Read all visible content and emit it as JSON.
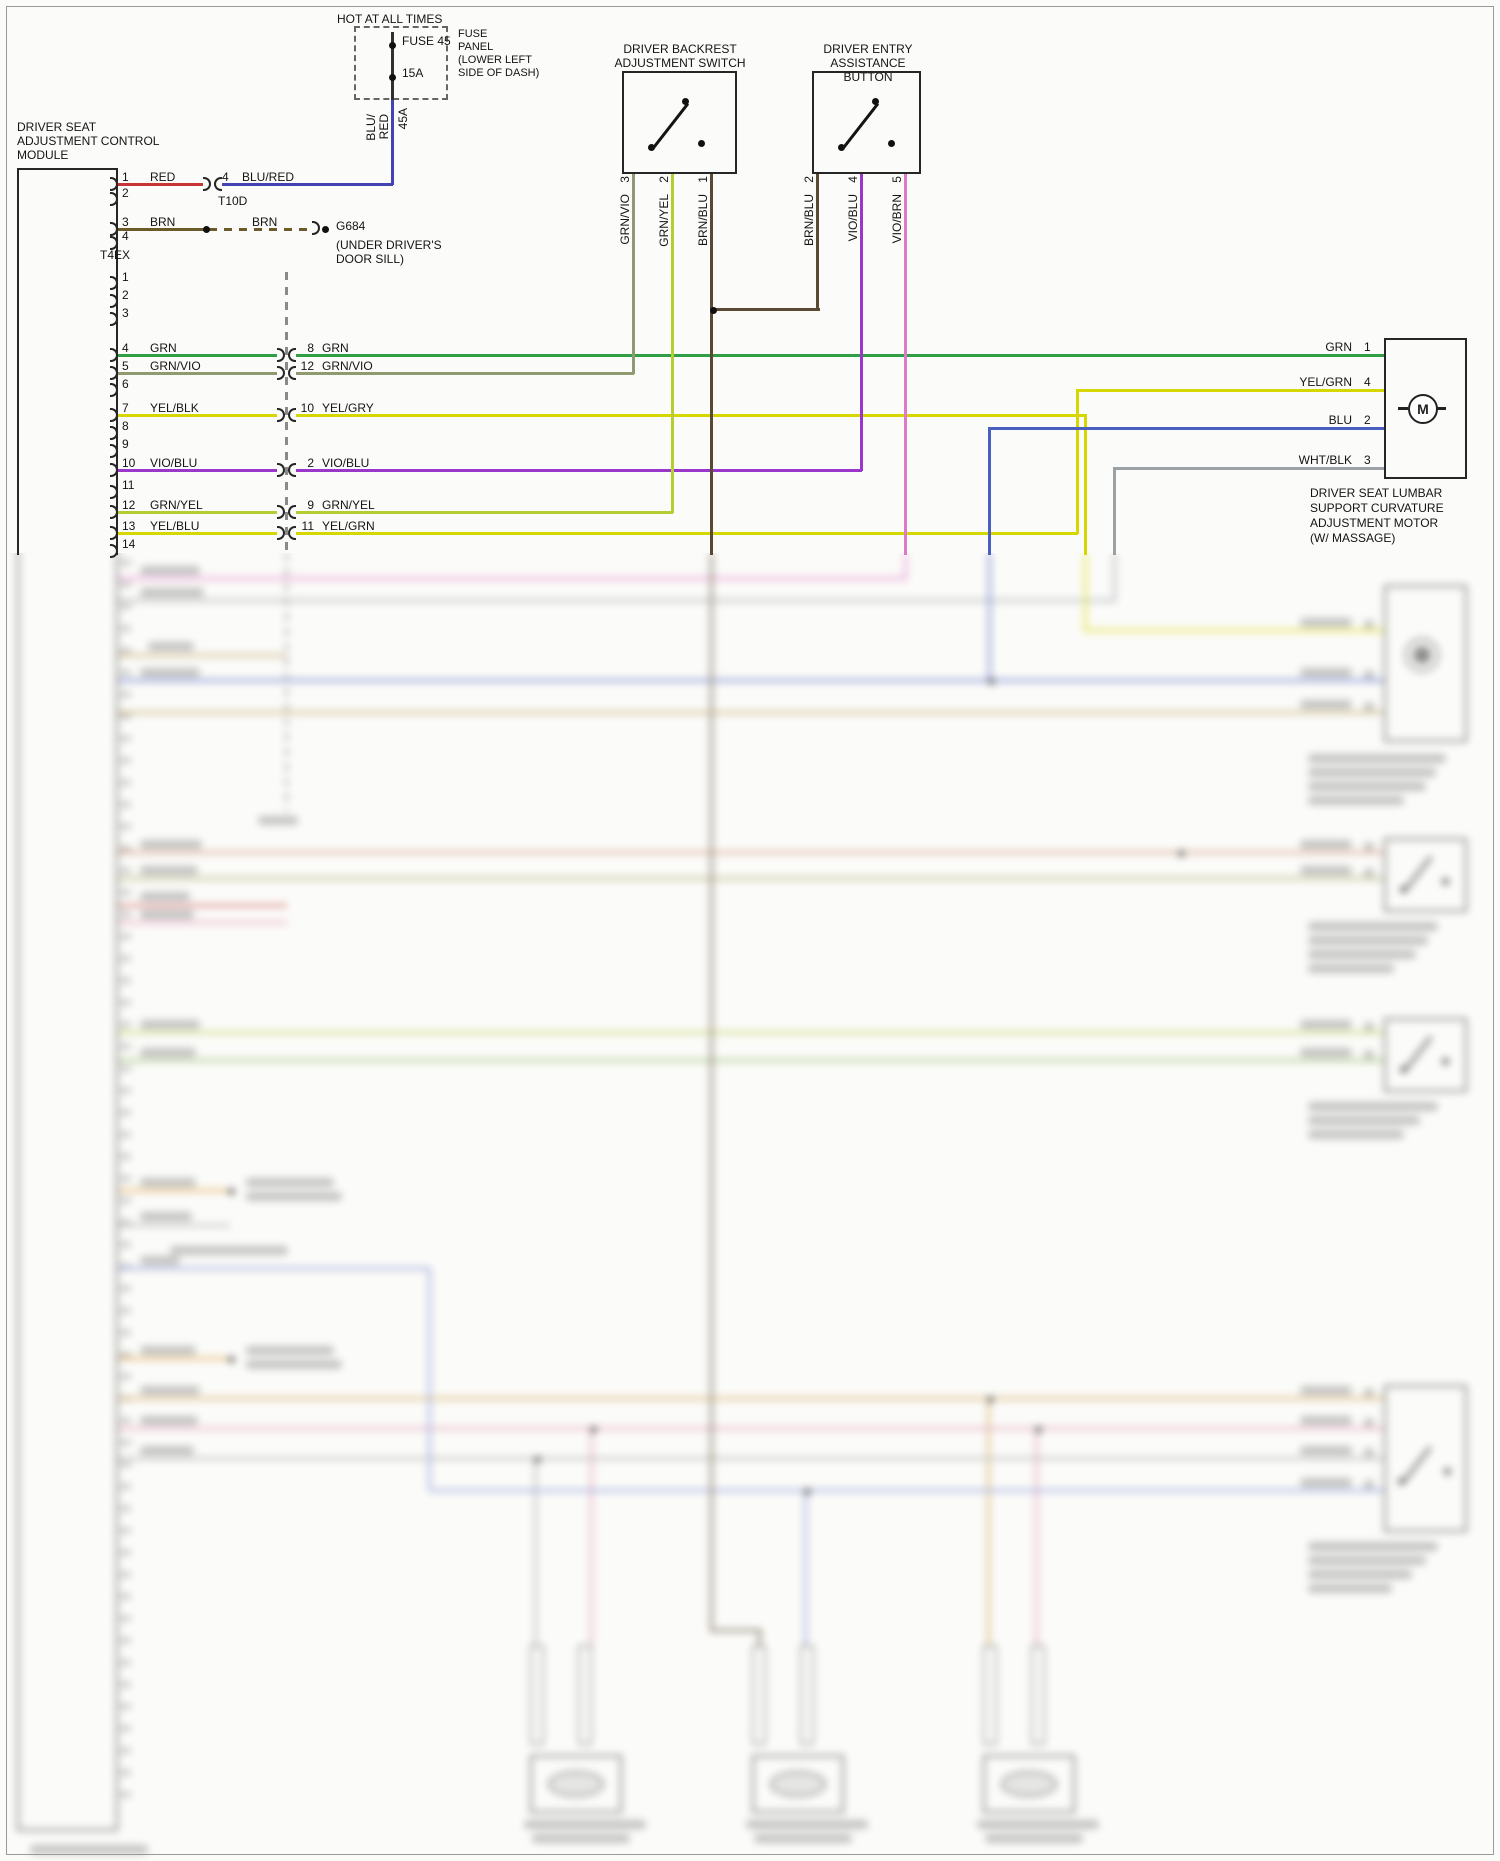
{
  "colors": {
    "red": "#c63636",
    "blu_red": "#4343b2",
    "brn": "#6b5a2a",
    "grn": "#2f9e44",
    "grn_vio": "#8f9a70",
    "yel": "#d6d600",
    "vio_blu": "#9a36c9",
    "grn_yel": "#b5cc33",
    "brn_blu": "#5a4a33",
    "vio_brn": "#de7bc8",
    "blu": "#4a5fc0",
    "wht_blk": "#9aa0a3",
    "tan": "#b59a56",
    "salmon": "#c9876a",
    "olive": "#a0a060",
    "red2": "#c34a4a",
    "pink": "#dd8fae",
    "yelgrn": "#b8c84a",
    "green2": "#86b05a",
    "orange": "#d9972f",
    "gray2": "#a3a3a3",
    "tan2": "#cc9a44",
    "blu2": "#7b8cd0"
  },
  "power": {
    "hot": "HOT AT ALL TIMES",
    "fuse_name": "FUSE 45",
    "fuse_rating": "15A",
    "panel_note": "FUSE\nPANEL\n(LOWER LEFT\nSIDE OF DASH)",
    "wire_color_a": "BLU/",
    "wire_color_b": "RED",
    "wire_gauge": "45A"
  },
  "module": {
    "title": "DRIVER SEAT\nADJUSTMENT CONTROL\nMODULE",
    "connector1": {
      "name": "T4EX",
      "pins": [
        {
          "n": "1",
          "wire": "RED"
        },
        {
          "n": "2",
          "wire": ""
        },
        {
          "n": "3",
          "wire": "BRN"
        },
        {
          "n": "4",
          "wire": ""
        }
      ]
    },
    "inline_connector": {
      "name": "T10D",
      "pin": "4",
      "wire": "BLU/RED"
    },
    "ground": {
      "wire": "BRN",
      "wire2": "BRN",
      "id": "G684",
      "note": "(UNDER DRIVER'S\nDOOR SILL)"
    },
    "connector2": {
      "pins": [
        {
          "n": "1",
          "wire": ""
        },
        {
          "n": "2",
          "wire": ""
        },
        {
          "n": "3",
          "wire": ""
        },
        {
          "n": "4",
          "wire": "GRN"
        },
        {
          "n": "5",
          "wire": "GRN/VIO"
        },
        {
          "n": "6",
          "wire": ""
        },
        {
          "n": "7",
          "wire": "YEL/BLK"
        },
        {
          "n": "8",
          "wire": ""
        },
        {
          "n": "9",
          "wire": ""
        },
        {
          "n": "10",
          "wire": "VIO/BLU"
        },
        {
          "n": "11",
          "wire": ""
        },
        {
          "n": "12",
          "wire": "GRN/YEL"
        },
        {
          "n": "13",
          "wire": "YEL/BLU"
        },
        {
          "n": "14",
          "wire": ""
        }
      ]
    }
  },
  "mid_connector": {
    "pins": [
      {
        "n": "8",
        "wire": "GRN"
      },
      {
        "n": "12",
        "wire": "GRN/VIO"
      },
      {
        "n": "10",
        "wire": "YEL/GRY"
      },
      {
        "n": "2",
        "wire": "VIO/BLU"
      },
      {
        "n": "9",
        "wire": "GRN/YEL"
      },
      {
        "n": "11",
        "wire": "YEL/GRN"
      }
    ]
  },
  "switches": {
    "backrest": {
      "title": "DRIVER BACKREST\nADJUSTMENT SWITCH",
      "pins": [
        {
          "wire": "GRN/VIO",
          "n": "3"
        },
        {
          "wire": "GRN/YEL",
          "n": "2"
        },
        {
          "wire": "BRN/BLU",
          "n": "1"
        }
      ]
    },
    "entry": {
      "title": "DRIVER ENTRY ASSISTANCE\nBUTTON",
      "pins": [
        {
          "wire": "BRN/BLU",
          "n": "2"
        },
        {
          "wire": "VIO/BLU",
          "n": "4"
        },
        {
          "wire": "VIO/BRN",
          "n": "5"
        }
      ]
    }
  },
  "motor": {
    "symbol": "M",
    "caption": "DRIVER SEAT LUMBAR\nSUPPORT CURVATURE\nADJUSTMENT MOTOR\n(W/ MASSAGE)",
    "pins": [
      {
        "wire": "GRN",
        "n": "1"
      },
      {
        "wire": "YEL/GRN",
        "n": "4"
      },
      {
        "wire": "BLU",
        "n": "2"
      },
      {
        "wire": "WHT/BLK",
        "n": "3"
      }
    ]
  }
}
